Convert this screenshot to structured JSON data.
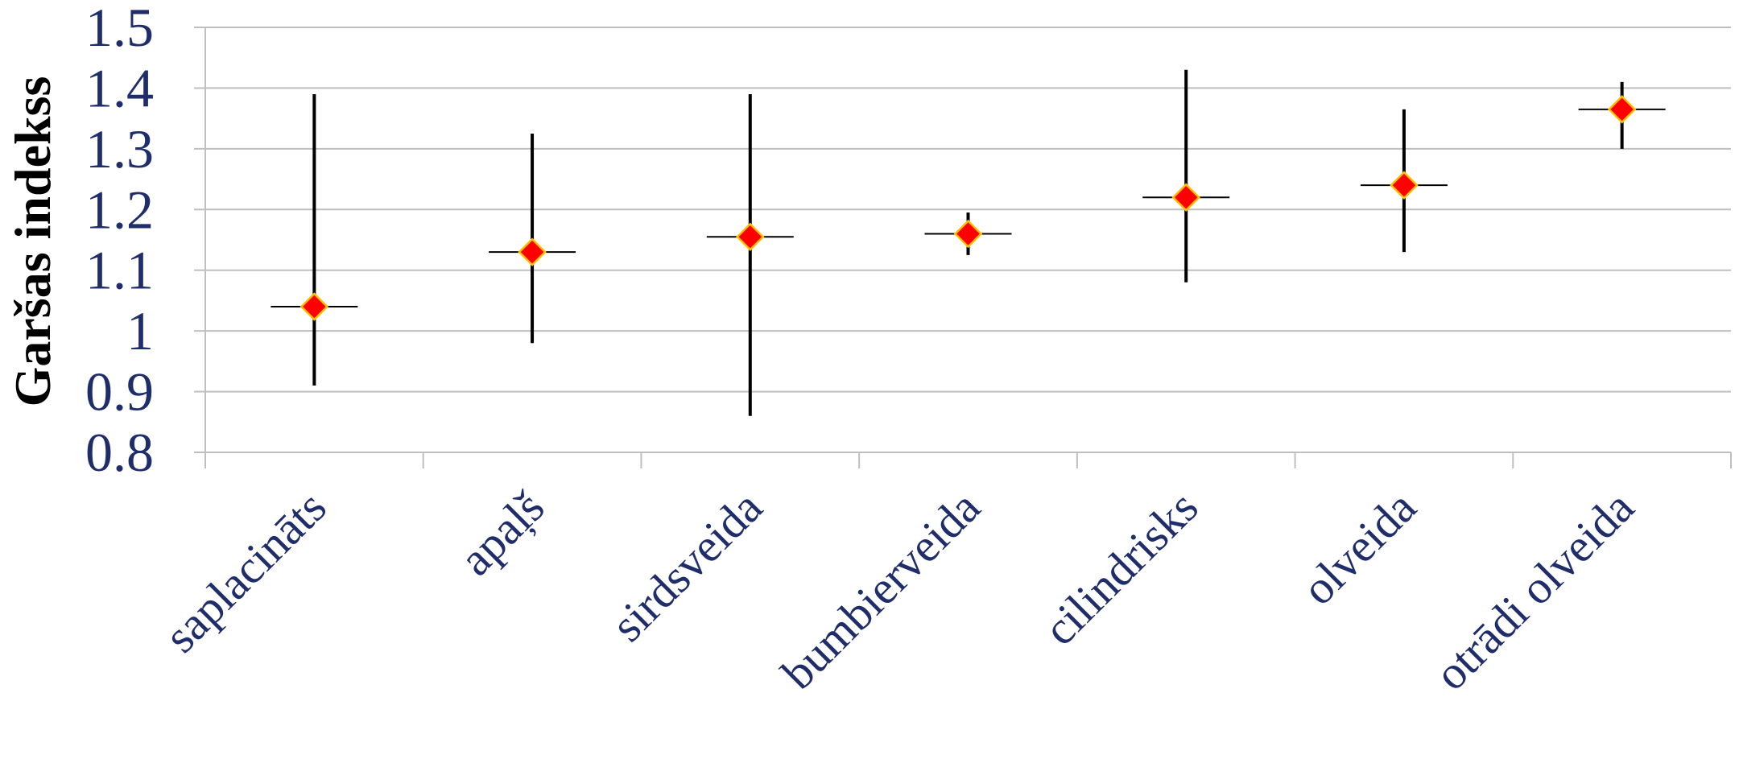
{
  "chart_data": {
    "type": "scatter",
    "subtype": "high-low-close with center markers",
    "title": "",
    "xlabel": "",
    "ylabel": "Garšas indekss",
    "categories": [
      "saplacināts",
      "apaļš",
      "sirdsveida",
      "bumbierveida",
      "cilindrisks",
      "olveida",
      "otrādi olveida"
    ],
    "values": [
      1.04,
      1.13,
      1.155,
      1.16,
      1.22,
      1.24,
      1.365
    ],
    "high": [
      1.39,
      1.325,
      1.39,
      1.195,
      1.43,
      1.365,
      1.41
    ],
    "low": [
      0.91,
      0.98,
      0.86,
      1.125,
      1.08,
      1.13,
      1.3
    ],
    "ylim": [
      0.8,
      1.5
    ],
    "yticks": [
      0.8,
      0.9,
      1,
      1.1,
      1.2,
      1.3,
      1.4,
      1.5
    ],
    "ytick_labels": [
      "0.8",
      "0.9",
      "1",
      "1.1",
      "1.2",
      "1.3",
      "1.4",
      "1.5"
    ],
    "grid": true,
    "legend": "none",
    "colors": {
      "axis_text": "#1F2D6B",
      "marker_fill": "#FF0000",
      "marker_edge": "#FFC000",
      "range_line": "#000000",
      "gridline": "#BFBFBF"
    }
  }
}
